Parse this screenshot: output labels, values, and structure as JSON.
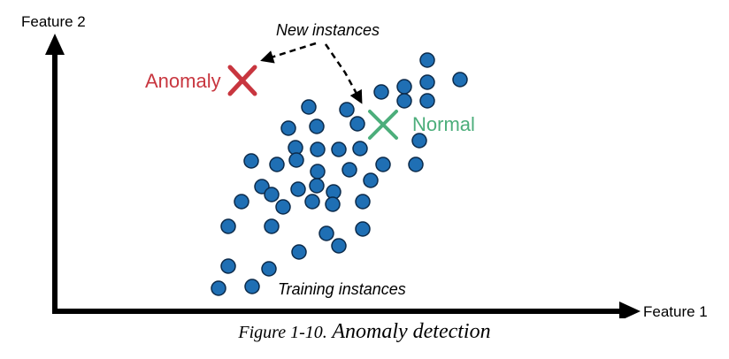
{
  "axes": {
    "x_label": "Feature 1",
    "y_label": "Feature 2"
  },
  "annotations": {
    "new_instances": "New instances",
    "training_instances": "Training instances"
  },
  "markers": {
    "anomaly": {
      "label": "Anomaly",
      "color": "#c8363f"
    },
    "normal": {
      "label": "Normal",
      "color": "#4cae7b"
    }
  },
  "training_point_style": {
    "fill": "#1f6fb4",
    "stroke": "#0b2a4a"
  },
  "caption": {
    "figure_number": "Figure 1-10.",
    "title": "Anomaly detection"
  }
}
